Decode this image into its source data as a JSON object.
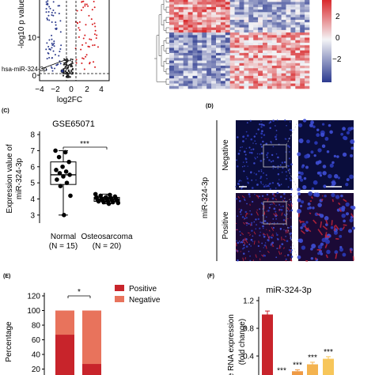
{
  "panels": {
    "A": {
      "xlabel": "log2FC",
      "ylabel": "-log10 p value",
      "yticks": [
        "10",
        "0"
      ],
      "xticks": [
        "−4",
        "−2",
        "0",
        "2",
        "4"
      ],
      "annotation": "hsa-miR-324-3p"
    },
    "B": {
      "colorbar_ticks": [
        "2",
        "0",
        "−2"
      ]
    },
    "C": {
      "letter": "(C)",
      "title": "GSE65071",
      "ylabel_line1": "Expression value of",
      "ylabel_line2": "miR-324-3p",
      "yticks": [
        "8",
        "7",
        "6",
        "5",
        "4",
        "3"
      ],
      "groups": [
        {
          "name": "Normal",
          "n": "(N = 15)"
        },
        {
          "name": "Osteosarcoma",
          "n": "(N = 20)"
        }
      ],
      "significance": "***"
    },
    "D": {
      "letter": "(D)",
      "row_label": "miR-324-3p",
      "rows": [
        "Negative",
        "Positive"
      ]
    },
    "E": {
      "letter": "(E)",
      "significance": "*",
      "ylabel": "Percentage",
      "yticks": [
        "120",
        "100",
        "80",
        "60",
        "40",
        "20"
      ]
    },
    "F": {
      "letter": "(F)",
      "title": "miR-324-3p",
      "ylabel_line1": "ative RNA expression",
      "ylabel_line2": "(fold change)",
      "yticks": [
        "1.2",
        "0.8",
        "0.4"
      ],
      "bar_labels": [
        "***",
        "***",
        "***",
        "***"
      ]
    }
  },
  "chart_data": [
    {
      "type": "scatter",
      "panel": "A",
      "xlabel": "log2FC",
      "ylabel": "-log10 p value",
      "xlim": [
        -4.5,
        6.5
      ],
      "ylim": [
        -1,
        25
      ],
      "colors": {
        "down": "#2b3a8c",
        "up": "#d7191c",
        "ns": "#222222"
      },
      "highlight": {
        "label": "hsa-miR-324-3p",
        "x": -0.9,
        "y": 2.0
      }
    },
    {
      "type": "heatmap",
      "panel": "B",
      "colorbar_range": [
        -3,
        3
      ],
      "colors": {
        "low": "#2c3a8f",
        "mid": "#f4f4f6",
        "high": "#d7191c"
      }
    },
    {
      "type": "scatter",
      "panel": "C",
      "title": "GSE65071",
      "ylabel": "Expression value of miR-324-3p",
      "categories": [
        "Normal (N = 15)",
        "Osteosarcoma (N = 20)"
      ],
      "ylim": [
        2.5,
        8.2
      ],
      "series": [
        {
          "values": [
            7.0,
            6.9,
            6.6,
            6.3,
            6.0,
            5.8,
            5.7,
            5.6,
            5.5,
            5.4,
            5.2,
            5.0,
            4.8,
            4.2,
            3.0
          ]
        },
        {
          "values": [
            4.3,
            4.25,
            4.2,
            4.15,
            4.1,
            4.1,
            4.05,
            4.0,
            4.0,
            4.0,
            3.95,
            3.95,
            3.9,
            3.9,
            3.85,
            3.85,
            3.8,
            3.8,
            3.75,
            3.7
          ]
        }
      ],
      "box": [
        {
          "min": 3.0,
          "q1": 4.9,
          "median": 5.5,
          "q3": 6.3,
          "max": 7.0
        },
        {
          "min": 3.7,
          "q1": 3.85,
          "median": 4.0,
          "q3": 4.1,
          "max": 4.3
        }
      ],
      "significance": "***"
    },
    {
      "type": "bar",
      "panel": "E",
      "stacked": true,
      "ylabel": "Percentage",
      "ylim": [
        0,
        120
      ],
      "legend": "top-right",
      "categories": [
        "",
        ""
      ],
      "series": [
        {
          "name": "Positive",
          "color": "#c8242b",
          "values": [
            67,
            27
          ]
        },
        {
          "name": "Negative",
          "color": "#e8735c",
          "values": [
            33,
            73
          ]
        }
      ],
      "significance": "*"
    },
    {
      "type": "bar",
      "panel": "F",
      "title": "miR-324-3p",
      "ylabel": "Relative RNA expression (fold change)",
      "ylim": [
        0,
        1.3
      ],
      "categories": [
        "",
        "",
        "",
        "",
        ""
      ],
      "values": [
        1.0,
        0.1,
        0.18,
        0.28,
        0.36
      ],
      "errors": [
        0.05,
        0.02,
        0.02,
        0.03,
        0.03
      ],
      "colors": [
        "#c8242b",
        "#e8735c",
        "#ef9a44",
        "#f4b34f",
        "#f7c65a"
      ],
      "significance": [
        "",
        "***",
        "***",
        "***",
        "***"
      ]
    }
  ]
}
